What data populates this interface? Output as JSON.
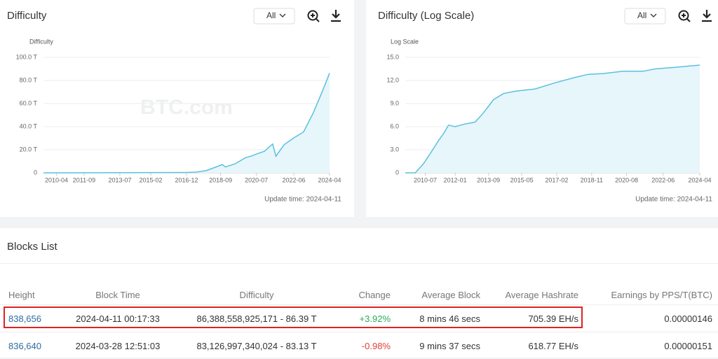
{
  "chart_data": [
    {
      "type": "line",
      "title": "Difficulty",
      "dropdown": "All",
      "y_label": "Difficulty",
      "watermark": "BTC.com",
      "annotation": "Update time: 2024-04-11",
      "color": "#5bc0de",
      "grid": true,
      "xlim": [
        "2009-08",
        "2024-04"
      ],
      "xticks": [
        "2010-04",
        "2011-09",
        "2013-07",
        "2015-02",
        "2016-12",
        "2018-09",
        "2020-07",
        "2022-06",
        "2024-04"
      ],
      "ylim": [
        0,
        100
      ],
      "yticks": [
        0,
        {
          "value": 20,
          "label": "20.0 T"
        },
        {
          "value": 40,
          "label": "40.0 T"
        },
        {
          "value": 60,
          "label": "60.0 T"
        },
        {
          "value": 80,
          "label": "80.0 T"
        },
        {
          "value": 100,
          "label": "100.0 T"
        }
      ],
      "x": [
        "2009-08",
        "2016-12",
        "2017-06",
        "2017-12",
        "2018-06",
        "2018-10",
        "2018-12",
        "2019-06",
        "2019-12",
        "2020-05",
        "2020-06",
        "2020-12",
        "2021-05",
        "2021-07",
        "2021-12",
        "2022-06",
        "2022-12",
        "2023-06",
        "2023-12",
        "2024-04"
      ],
      "values": [
        0,
        0.3,
        0.7,
        1.9,
        5,
        7.2,
        5.1,
        7.9,
        12.9,
        15.1,
        15.8,
        18.7,
        25,
        14.4,
        24.3,
        30.3,
        35.4,
        52,
        72,
        86.39
      ]
    },
    {
      "type": "line",
      "title": "Difficulty (Log Scale)",
      "dropdown": "All",
      "y_label": "Log Scale",
      "watermark": "BTC.com",
      "annotation": "Update time: 2024-04-11",
      "color": "#5bc0de",
      "grid": true,
      "xlim": [
        "2009-07",
        "2024-04"
      ],
      "xticks": [
        "2010-07",
        "2012-01",
        "2013-09",
        "2015-05",
        "2017-02",
        "2018-11",
        "2020-08",
        "2022-06",
        "2024-04"
      ],
      "ylim": [
        0,
        15
      ],
      "yticks": [
        0,
        {
          "value": 3,
          "label": "3.0"
        },
        {
          "value": 6,
          "label": "6.0"
        },
        {
          "value": 9,
          "label": "9.0"
        },
        {
          "value": 12,
          "label": "12.0"
        },
        {
          "value": 15,
          "label": "15.0"
        }
      ],
      "x": [
        "2009-07",
        "2010-01",
        "2010-06",
        "2010-10",
        "2011-03",
        "2011-06",
        "2011-09",
        "2012-01",
        "2012-06",
        "2013-01",
        "2013-06",
        "2013-12",
        "2014-06",
        "2015-01",
        "2016-01",
        "2017-01",
        "2018-01",
        "2018-09",
        "2019-06",
        "2020-06",
        "2021-06",
        "2022-01",
        "2023-01",
        "2024-04"
      ],
      "values": [
        0,
        0,
        1.2,
        2.5,
        4.2,
        5.1,
        6.2,
        6,
        6.3,
        6.6,
        7.8,
        9.5,
        10.3,
        10.6,
        10.9,
        11.7,
        12.4,
        12.8,
        12.9,
        13.2,
        13.2,
        13.5,
        13.7,
        14
      ]
    }
  ],
  "table": {
    "title": "Blocks List",
    "headers": [
      "Height",
      "Block Time",
      "Difficulty",
      "Change",
      "Average Block",
      "Average Hashrate",
      "Earnings by PPS/T(BTC)"
    ],
    "rows": [
      [
        "838,656",
        "2024-04-11 00:17:33",
        "86,388,558,925,171 - 86.39 T",
        "+3.92%",
        "8 mins 46 secs",
        "705.39 EH/s",
        "0.00000146"
      ],
      [
        "836,640",
        "2024-03-28 12:51:03",
        "83,126,997,340,024 - 83.13 T",
        "-0.98%",
        "9 mins 37 secs",
        "618.77 EH/s",
        "0.00000151"
      ]
    ]
  }
}
